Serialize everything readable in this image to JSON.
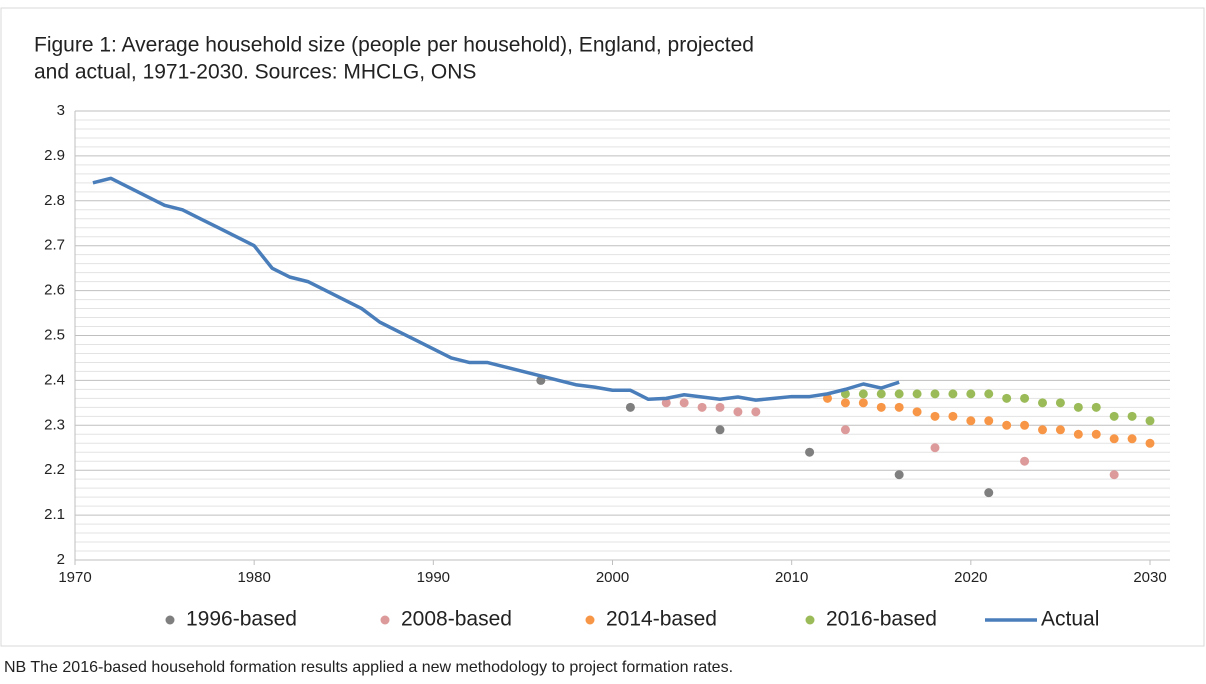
{
  "chart_data": {
    "type": "scatter",
    "title": [
      "Figure 1: Average household size (people per household), England, projected",
      "and actual, 1971-2030. Sources: MHCLG, ONS"
    ],
    "xlim": [
      1970,
      2030
    ],
    "xticks": [
      1970,
      1980,
      1990,
      2000,
      2010,
      2020,
      2030
    ],
    "ylim": [
      2,
      3
    ],
    "yticks": [
      2,
      2.1,
      2.2,
      2.3,
      2.4,
      2.5,
      2.6,
      2.7,
      2.8,
      2.9,
      3
    ],
    "minor_yticks": [
      2.02,
      2.04,
      2.06,
      2.08,
      2.12,
      2.14,
      2.16,
      2.18,
      2.22,
      2.24,
      2.26,
      2.28,
      2.32,
      2.34,
      2.36,
      2.38,
      2.42,
      2.44,
      2.46,
      2.48,
      2.52,
      2.54,
      2.56,
      2.58,
      2.62,
      2.64,
      2.66,
      2.68,
      2.72,
      2.74,
      2.76,
      2.78,
      2.82,
      2.84,
      2.86,
      2.88,
      2.92,
      2.94,
      2.96,
      2.98
    ],
    "grid": true,
    "legend": "bottom",
    "series": [
      {
        "name": "1996-based",
        "type": "scatter",
        "color": "#7f7f7f",
        "x": [
          1996,
          2001,
          2006,
          2011,
          2016,
          2021
        ],
        "values": [
          2.4,
          2.34,
          2.29,
          2.24,
          2.19,
          2.15
        ]
      },
      {
        "name": "2008-based",
        "type": "scatter",
        "color": "#dd9a9a",
        "x": [
          2003,
          2004,
          2005,
          2006,
          2007,
          2008,
          2013,
          2018,
          2023,
          2028
        ],
        "values": [
          2.35,
          2.35,
          2.34,
          2.34,
          2.33,
          2.33,
          2.29,
          2.25,
          2.22,
          2.19
        ]
      },
      {
        "name": "2014-based",
        "type": "scatter",
        "color": "#f79646",
        "x": [
          2012,
          2013,
          2014,
          2015,
          2016,
          2017,
          2018,
          2019,
          2020,
          2021,
          2022,
          2023,
          2024,
          2025,
          2026,
          2027,
          2028,
          2029,
          2030
        ],
        "values": [
          2.36,
          2.35,
          2.35,
          2.34,
          2.34,
          2.33,
          2.32,
          2.32,
          2.31,
          2.31,
          2.3,
          2.3,
          2.29,
          2.29,
          2.28,
          2.28,
          2.27,
          2.27,
          2.26
        ]
      },
      {
        "name": "2016-based",
        "type": "scatter",
        "color": "#9bbb59",
        "x": [
          2013,
          2014,
          2015,
          2016,
          2017,
          2018,
          2019,
          2020,
          2021,
          2022,
          2023,
          2024,
          2025,
          2026,
          2027,
          2028,
          2029,
          2030
        ],
        "values": [
          2.37,
          2.37,
          2.37,
          2.37,
          2.37,
          2.37,
          2.37,
          2.37,
          2.37,
          2.36,
          2.36,
          2.35,
          2.35,
          2.34,
          2.34,
          2.32,
          2.32,
          2.31
        ]
      },
      {
        "name": "Actual",
        "type": "line",
        "color": "#4a7ebb",
        "x": [
          1971,
          1972,
          1973,
          1974,
          1975,
          1976,
          1977,
          1978,
          1979,
          1980,
          1981,
          1982,
          1983,
          1984,
          1985,
          1986,
          1987,
          1988,
          1989,
          1990,
          1991,
          1992,
          1993,
          1994,
          1995,
          1996,
          1997,
          1998,
          1999,
          2000,
          2001,
          2002,
          2003,
          2004,
          2005,
          2006,
          2007,
          2008,
          2009,
          2010,
          2011,
          2012,
          2013,
          2014,
          2015,
          2016
        ],
        "values": [
          2.84,
          2.85,
          2.83,
          2.81,
          2.79,
          2.78,
          2.76,
          2.74,
          2.72,
          2.7,
          2.65,
          2.63,
          2.62,
          2.6,
          2.58,
          2.56,
          2.53,
          2.51,
          2.49,
          2.47,
          2.45,
          2.44,
          2.44,
          2.43,
          2.42,
          2.41,
          2.4,
          2.39,
          2.385,
          2.378,
          2.378,
          2.358,
          2.36,
          2.368,
          2.363,
          2.358,
          2.363,
          2.356,
          2.36,
          2.364,
          2.364,
          2.37,
          2.38,
          2.392,
          2.383,
          2.396
        ]
      }
    ],
    "note": "NB The 2016-based household formation results applied a new methodology to project formation rates."
  }
}
